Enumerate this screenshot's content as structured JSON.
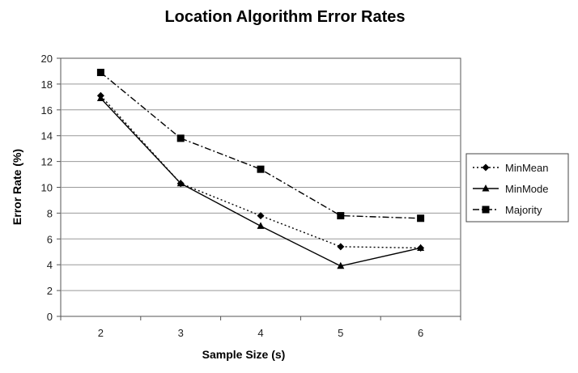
{
  "chart_data": {
    "type": "line",
    "title": "Location Algorithm Error Rates",
    "xlabel": "Sample Size (s)",
    "ylabel": "Error Rate (%)",
    "x": [
      2,
      3,
      4,
      5,
      6
    ],
    "ylim": [
      0,
      20
    ],
    "yticks": [
      0,
      2,
      4,
      6,
      8,
      10,
      12,
      14,
      16,
      18,
      20
    ],
    "grid": true,
    "legend_position": "right",
    "series": [
      {
        "name": "MinMean",
        "values": [
          17.1,
          10.3,
          7.8,
          5.4,
          5.3
        ],
        "marker": "diamond",
        "dash": "dotted",
        "color": "#000000"
      },
      {
        "name": "MinMode",
        "values": [
          16.9,
          10.3,
          7.0,
          3.9,
          5.3
        ],
        "marker": "triangle",
        "dash": "solid",
        "color": "#000000"
      },
      {
        "name": "Majority",
        "values": [
          18.9,
          13.8,
          11.4,
          7.8,
          7.6
        ],
        "marker": "square",
        "dash": "dashdot",
        "color": "#000000"
      }
    ],
    "plot_background": "#ffffff",
    "grid_color": "#999999"
  }
}
